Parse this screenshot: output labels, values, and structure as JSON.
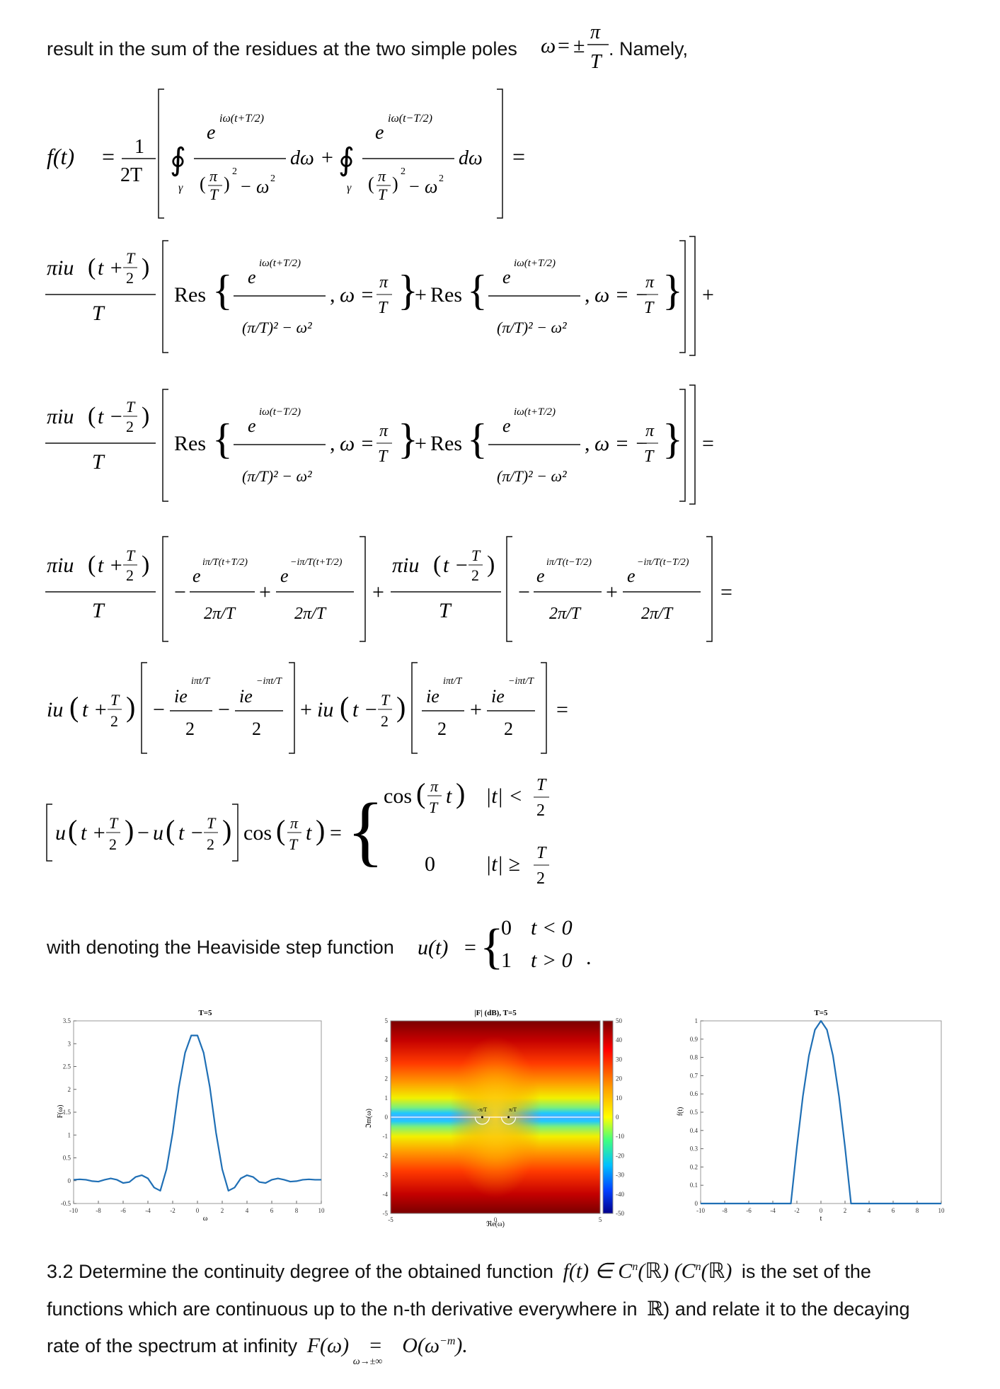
{
  "text": {
    "line1_before": "result in the sum of the residues at the two simple poles",
    "line1_after": ". Namely,",
    "heaviside_text": "with denoting the Heaviside step function",
    "q32_line1": "3.2 Determine the continuity degree of the obtained function",
    "q32_line1_tail": "is the set of the",
    "q32_line2": "functions which are continuous up to the n-th derivative everywhere in",
    "q32_line2_tail": ") and relate it to the decaying",
    "q32_line3": "rate of the spectrum at infinity"
  },
  "math": {
    "omega": "ω",
    "pm": "±",
    "pi": "π",
    "T": "T",
    "res": "Res",
    "cos": "cos",
    "f_of_t": "f(t)",
    "u_of_t": "u(t)",
    "half": "1",
    "two_T": "2T",
    "gamma": "γ",
    "zero": "0",
    "one": "1",
    "t_lt_0": "t < 0",
    "t_gt_0": "t > 0",
    "abs_lt": "|t| <",
    "abs_ge": "|t| ≥",
    "F_of_omega": "F(ω)",
    "big_o": "O(ω",
    "neg_m": "−m",
    "limit_sub": "ω→±∞",
    "C_n": "C",
    "R": "ℝ",
    "n": "n"
  },
  "colors": {
    "line_blue": "#1f6fb5",
    "axis": "#555555"
  },
  "chart_data": [
    {
      "type": "line",
      "title": "T=5",
      "xlabel": "ω",
      "ylabel": "F(ω)",
      "xlim": [
        -10,
        10
      ],
      "ylim": [
        -0.5,
        3.5
      ],
      "xticks": [
        -10,
        -8,
        -6,
        -4,
        -2,
        0,
        2,
        4,
        6,
        8,
        10
      ],
      "yticks": [
        -0.5,
        0,
        0.5,
        1,
        1.5,
        2,
        2.5,
        3,
        3.5
      ],
      "series": [
        {
          "x": [
            -10,
            -9.5,
            -9,
            -8.5,
            -8,
            -7.5,
            -7,
            -6.5,
            -6,
            -5.5,
            -5,
            -4.5,
            -4,
            -3.5,
            -3,
            -2.5,
            -2,
            -1.5,
            -1,
            -0.5,
            0,
            0.5,
            1,
            1.5,
            2,
            2.5,
            3,
            3.5,
            4,
            4.5,
            5,
            5.5,
            6,
            6.5,
            7,
            7.5,
            8,
            8.5,
            9,
            9.5,
            10
          ],
          "y": [
            0.02,
            0.03,
            0.02,
            -0.01,
            -0.02,
            0.02,
            0.05,
            0.02,
            -0.05,
            -0.03,
            0.08,
            0.12,
            0.05,
            -0.15,
            -0.22,
            0.25,
            1.05,
            2.05,
            2.8,
            3.18,
            3.18,
            2.8,
            2.05,
            1.05,
            0.25,
            -0.22,
            -0.15,
            0.05,
            0.12,
            0.08,
            -0.03,
            -0.05,
            0.02,
            0.05,
            0.02,
            -0.02,
            -0.01,
            0.02,
            0.03,
            0.02,
            0.02
          ]
        }
      ]
    },
    {
      "type": "heatmap",
      "title": "|F| (dB), T=5",
      "xlabel": "ℜe(ω)",
      "ylabel": "ℑm(ω)",
      "xlim": [
        -5,
        5
      ],
      "ylim": [
        -5,
        5
      ],
      "xticks": [
        -5,
        0,
        5
      ],
      "yticks": [
        -5,
        -4,
        -3,
        -2,
        -1,
        0,
        1,
        2,
        3,
        4,
        5
      ],
      "colorbar_ticks": [
        -50,
        -40,
        -30,
        -20,
        -10,
        0,
        10,
        20,
        30,
        40,
        50
      ],
      "annotations": [
        "-π/T",
        "π/T"
      ]
    },
    {
      "type": "line",
      "title": "T=5",
      "xlabel": "t",
      "ylabel": "f(t)",
      "xlim": [
        -10,
        10
      ],
      "ylim": [
        0,
        1
      ],
      "xticks": [
        -10,
        -8,
        -6,
        -4,
        -2,
        0,
        2,
        4,
        6,
        8,
        10
      ],
      "yticks": [
        0,
        0.1,
        0.2,
        0.3,
        0.4,
        0.5,
        0.6,
        0.7,
        0.8,
        0.9,
        1
      ],
      "series": [
        {
          "x": [
            -10,
            -2.5,
            -2.0,
            -1.5,
            -1.0,
            -0.5,
            0,
            0.5,
            1.0,
            1.5,
            2.0,
            2.5,
            10
          ],
          "y": [
            0,
            0,
            0.309,
            0.588,
            0.809,
            0.951,
            1,
            0.951,
            0.809,
            0.588,
            0.309,
            0,
            0
          ]
        }
      ]
    }
  ]
}
